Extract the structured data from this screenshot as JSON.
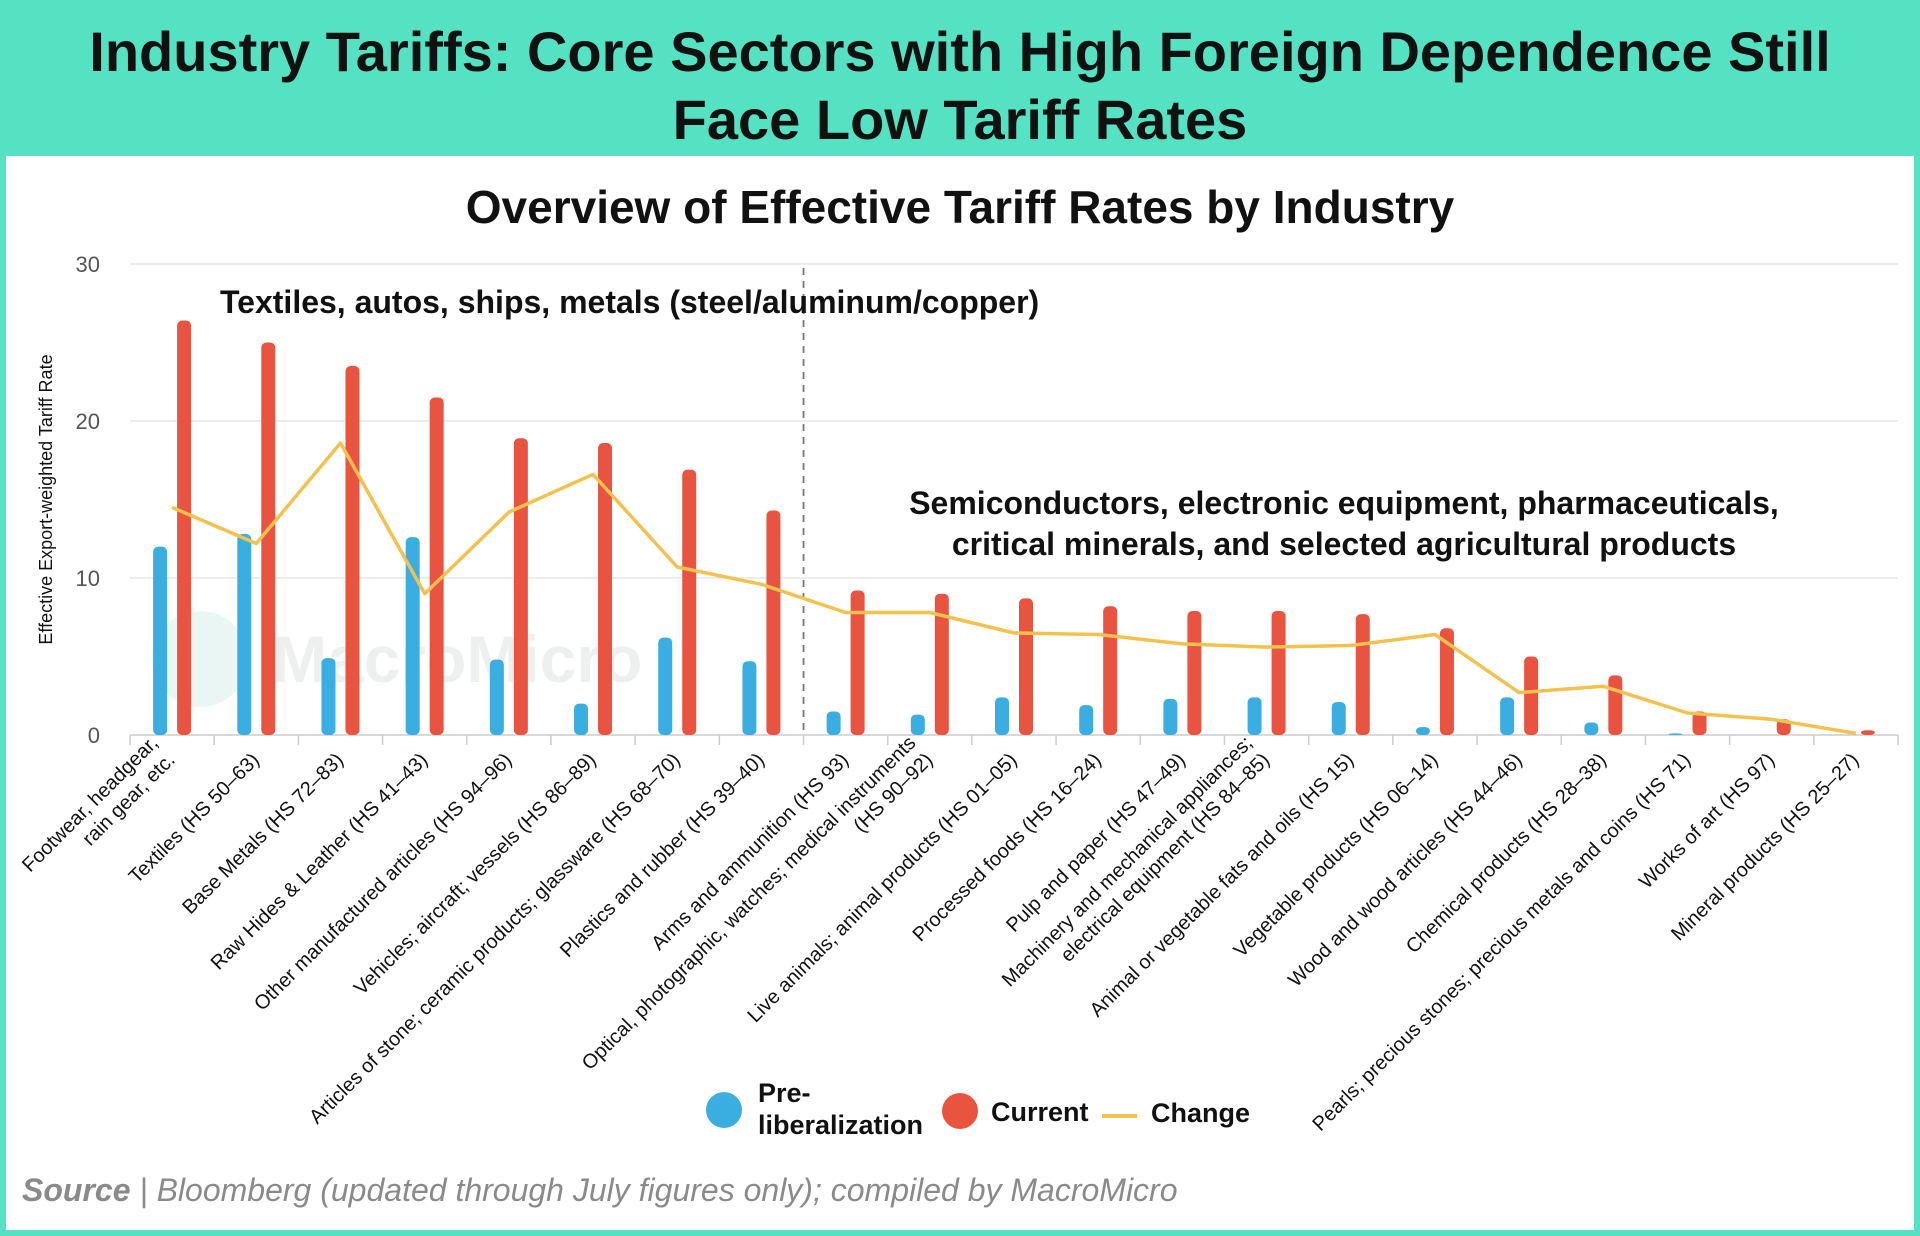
{
  "banner": {
    "title": "Industry Tariffs: Core Sectors with High Foreign Dependence Still Face Low Tariff Rates"
  },
  "watermark": "MacroMicro",
  "source": {
    "label": "Source",
    "separator": " | ",
    "text": "Bloomberg (updated through July figures only); compiled by MacroMicro"
  },
  "colors": {
    "banner": "#55e2c3",
    "pre": "#3aaee0",
    "current": "#e8543f",
    "change": "#f2c14e",
    "grid": "#e6e6e6",
    "text": "#111111",
    "axis_text": "#555555"
  },
  "chart_data": {
    "type": "bar",
    "title": "Overview of Effective Tariff Rates by Industry",
    "ylabel": "Effective Export-weighted Tariff Rate",
    "xlabel": "",
    "ylim": [
      0,
      30
    ],
    "yticks": [
      0,
      10,
      20,
      30
    ],
    "grid": true,
    "categories": [
      "Footwear, headgear,\nrain gear, etc.",
      "Textiles (HS 50–63)",
      "Base Metals (HS 72–83)",
      "Raw Hides & Leather (HS 41–43)",
      "Other manufactured articles (HS 94–96)",
      "Vehicles; aircraft; vessels (HS 86–89)",
      "Articles of stone; ceramic products; glassware (HS 68–70)",
      "Plastics and rubber (HS 39–40)",
      "Arms and ammunition (HS 93)",
      "Optical, photographic, watches; medical instruments\n(HS 90–92)",
      "Live animals; animal products (HS 01–05)",
      "Processed foods (HS 16–24)",
      "Pulp and paper (HS 47–49)",
      "Machinery and mechanical appliances;\nelectrical equipment (HS 84–85)",
      "Animal or vegetable fats and oils (HS 15)",
      "Vegetable products (HS 06–14)",
      "Wood and wood articles (HS 44–46)",
      "Chemical products (HS 28–38)",
      "Pearls; precious stones; precious metals and coins (HS 71)",
      "Works of art (HS 97)",
      "Mineral products (HS 25–27)"
    ],
    "series": [
      {
        "name": "Pre-\nliberalization",
        "kind": "bar",
        "color": "#3aaee0",
        "values": [
          12.0,
          12.8,
          4.9,
          12.6,
          4.8,
          2.0,
          6.2,
          4.7,
          1.5,
          1.3,
          2.4,
          1.9,
          2.3,
          2.4,
          2.1,
          0.5,
          2.4,
          0.8,
          0.1,
          0.0,
          0.0
        ]
      },
      {
        "name": "Current",
        "kind": "bar",
        "color": "#e8543f",
        "values": [
          26.4,
          25.0,
          23.5,
          21.5,
          18.9,
          18.6,
          16.9,
          14.3,
          9.2,
          9.0,
          8.7,
          8.2,
          7.9,
          7.9,
          7.7,
          6.8,
          5.0,
          3.8,
          1.5,
          1.0,
          0.3
        ]
      },
      {
        "name": "Change",
        "kind": "line",
        "color": "#f2c14e",
        "values": [
          14.5,
          12.2,
          18.6,
          9.0,
          14.2,
          16.6,
          10.7,
          9.6,
          7.8,
          7.8,
          6.5,
          6.4,
          5.8,
          5.6,
          5.7,
          6.4,
          2.7,
          3.1,
          1.4,
          1.0,
          0.1
        ]
      }
    ],
    "annotations": {
      "left_group": "Textiles, autos, ships, metals (steel/aluminum/copper)",
      "right_group": "Semiconductors, electronic equipment, pharmaceuticals,\ncritical minerals, and selected agricultural products"
    },
    "divider_after_index": 7,
    "legend_position": "bottom"
  }
}
